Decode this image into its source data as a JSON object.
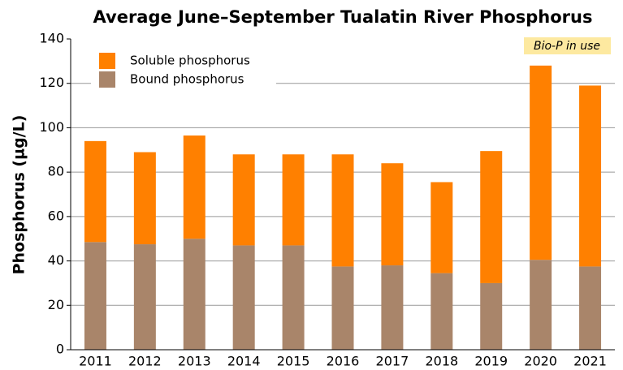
{
  "chart_data": {
    "type": "stacked_bar",
    "title": "Average June–September Tualatin River Phosphorus",
    "y_label": "Phosphorus (µg/L)",
    "annotation": "Bio-P in use",
    "categories": [
      "2011",
      "2012",
      "2013",
      "2014",
      "2015",
      "2016",
      "2017",
      "2018",
      "2019",
      "2020",
      "2021"
    ],
    "series": [
      {
        "name": "Bound phosphorus",
        "color": "#a9856a",
        "values": [
          48.5,
          47.5,
          50,
          47,
          47,
          37.5,
          38,
          34.5,
          30,
          40.5,
          37.5
        ]
      },
      {
        "name": "Soluble phosphorus",
        "color": "#ff8000",
        "values": [
          45.5,
          41.5,
          46.5,
          41,
          41,
          50.5,
          46,
          41,
          59.5,
          87.5,
          81.5
        ]
      }
    ],
    "ylim": [
      0,
      140
    ],
    "yticks": [
      0,
      20,
      40,
      60,
      80,
      100,
      120,
      140
    ],
    "grid": true
  }
}
